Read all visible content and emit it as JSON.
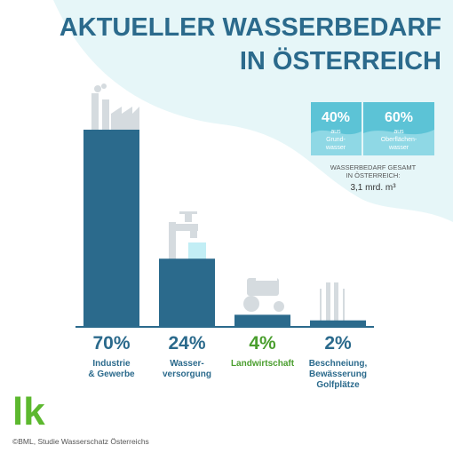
{
  "chart_data": {
    "type": "bar",
    "title": [
      "AKTUELLER WASSERBEDARF",
      "IN ÖSTERREICH"
    ],
    "categories": [
      [
        "Industrie",
        "& Gewerbe"
      ],
      [
        "Wasser-",
        "versorgung"
      ],
      [
        "Landwirtschaft"
      ],
      [
        "Beschneiung,",
        "Bewässerung",
        "Golfplätze"
      ]
    ],
    "values": [
      70,
      24,
      4,
      2
    ],
    "value_labels": [
      "70%",
      "24%",
      "4%",
      "2%"
    ],
    "color": "#2b6a8c",
    "label_colors": [
      "#2b6a8c",
      "#2b6a8c",
      "#4a9e2e",
      "#2b6a8c"
    ],
    "split": [
      {
        "label": "40%",
        "text": [
          "aus",
          "Grund-",
          "wasser"
        ]
      },
      {
        "label": "60%",
        "text": [
          "aus",
          "Oberflächen-",
          "wasser"
        ]
      }
    ],
    "total_label": [
      "WASSERBEDARF GESAMT",
      "IN ÖSTERREICH:"
    ],
    "total": "3,1 mrd. m³",
    "logo": "lk",
    "source": "©BML, Studie Wasserschatz Österreichs"
  }
}
